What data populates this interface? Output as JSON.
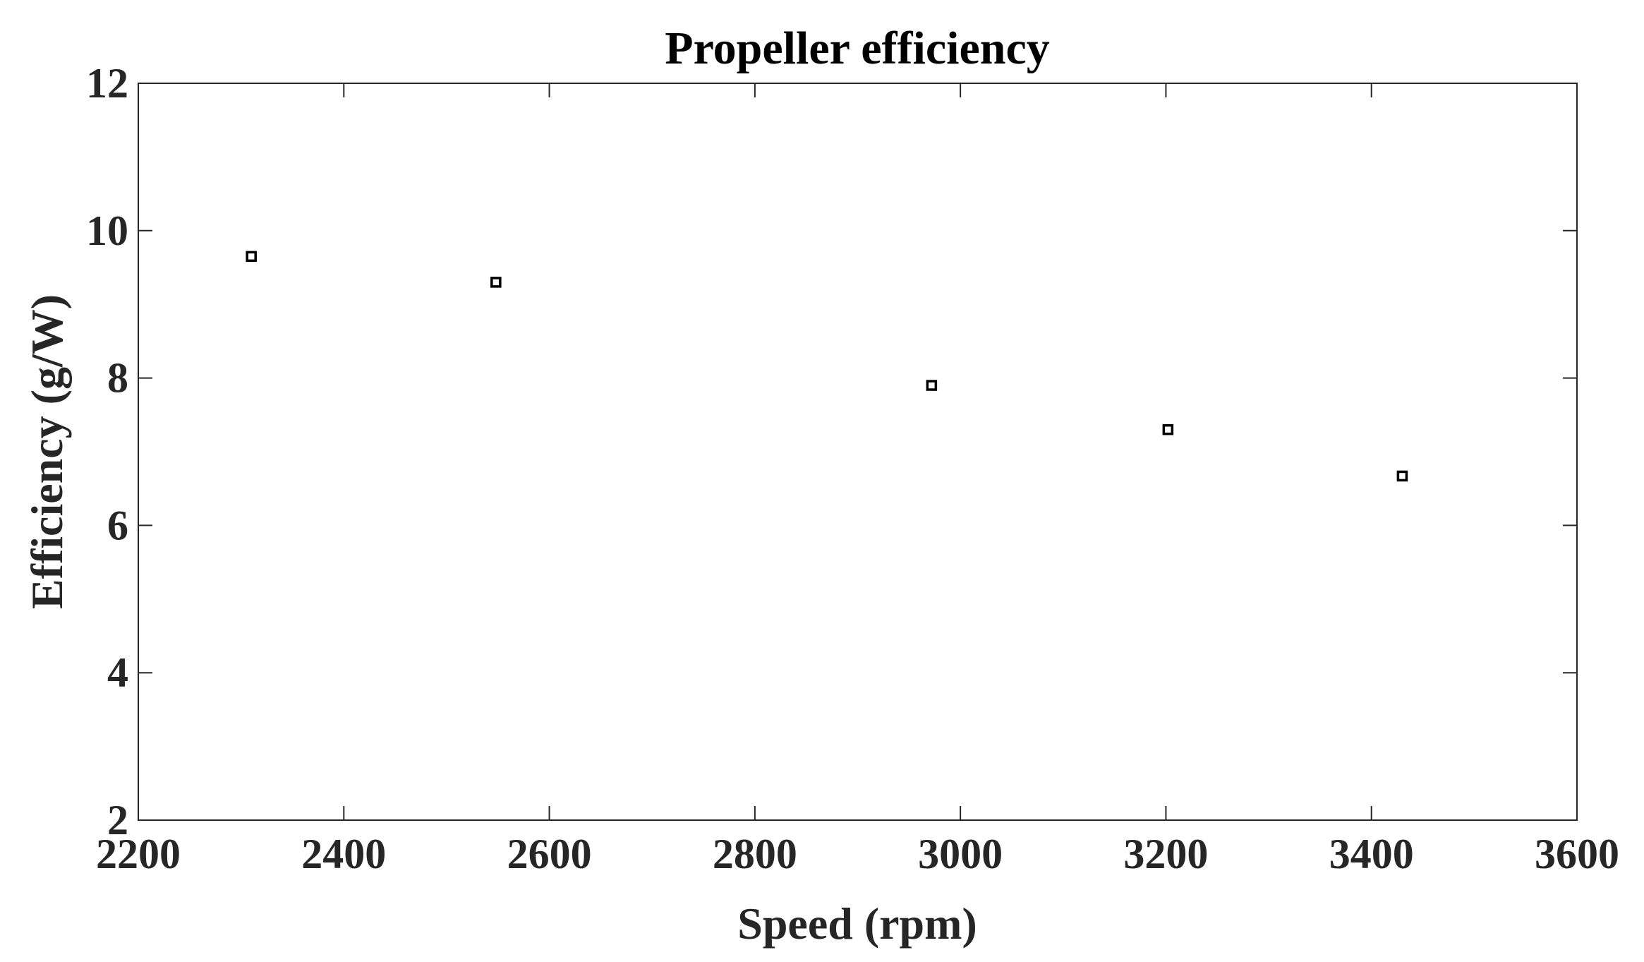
{
  "chart_data": {
    "type": "scatter",
    "title": "Propeller efficiency",
    "xlabel": "Speed (rpm)",
    "ylabel": "Efficiency (g/W)",
    "xlim": [
      2200,
      3600
    ],
    "ylim": [
      2,
      12
    ],
    "xticks": [
      "2200",
      "2400",
      "2600",
      "2800",
      "3000",
      "3200",
      "3400",
      "3600"
    ],
    "yticks": [
      "2",
      "4",
      "6",
      "8",
      "10",
      "12"
    ],
    "grid": false,
    "marker": "square",
    "marker_color": "#000000",
    "series": [
      {
        "x": [
          2310,
          2548,
          2972,
          3202,
          3430
        ],
        "y": [
          9.65,
          9.3,
          7.9,
          7.3,
          6.67
        ]
      }
    ]
  }
}
